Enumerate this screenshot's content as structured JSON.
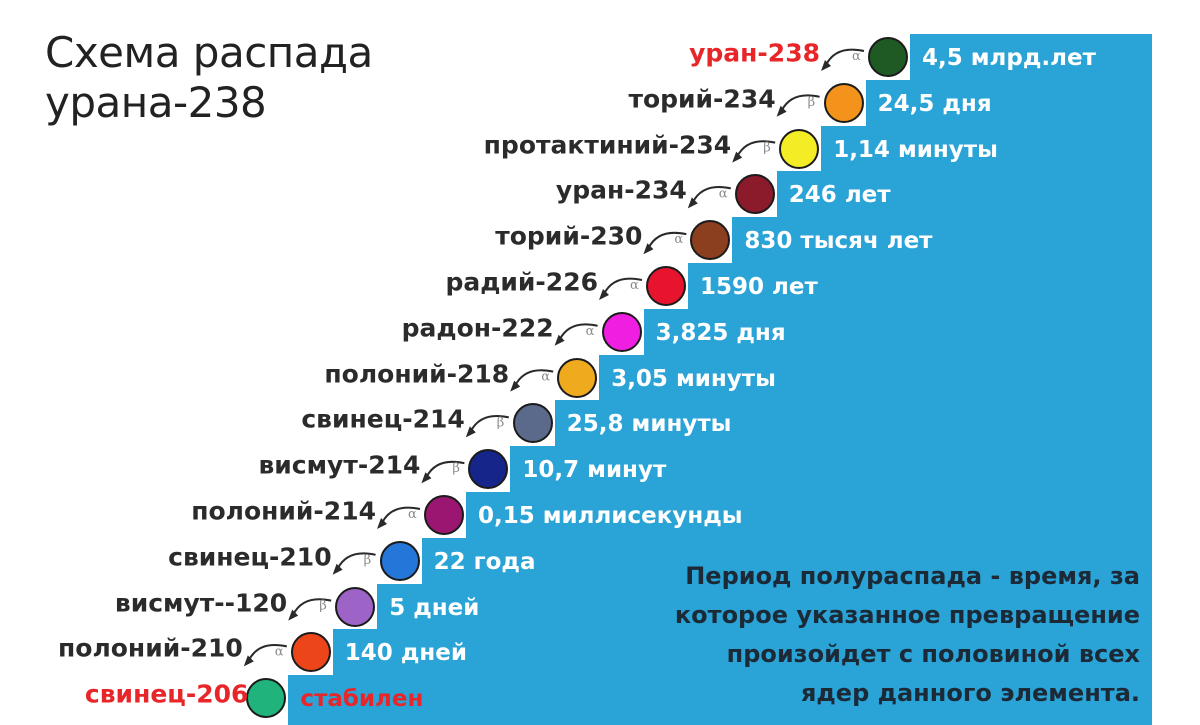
{
  "title": {
    "line1": "Схема распада",
    "line2": "урана-238"
  },
  "note": [
    "Период полураспада - время, за",
    "которое указанное превращение",
    "произойдет с половиной всех",
    "ядер данного элемента."
  ],
  "chain": [
    {
      "name": "уран-238",
      "half_life": "4,5 млрд.лет",
      "decay": "α",
      "color": "#1f5a24",
      "highlight": true
    },
    {
      "name": "торий-234",
      "half_life": "24,5 дня",
      "decay": "β",
      "color": "#f3931b"
    },
    {
      "name": "протактиний-234",
      "half_life": "1,14 минуты",
      "decay": "β",
      "color": "#f4ec24"
    },
    {
      "name": "уран-234",
      "half_life": "246 лет",
      "decay": "α",
      "color": "#8b1a2a"
    },
    {
      "name": "торий-230",
      "half_life": "830 тысяч лет",
      "decay": "α",
      "color": "#8c3f1e"
    },
    {
      "name": "радий-226",
      "half_life": "1590 лет",
      "decay": "α",
      "color": "#e8142e"
    },
    {
      "name": "радон-222",
      "half_life": "3,825 дня",
      "decay": "α",
      "color": "#f01ee0"
    },
    {
      "name": "полоний-218",
      "half_life": "3,05 минуты",
      "decay": "α",
      "color": "#f0aa1e"
    },
    {
      "name": "свинец-214",
      "half_life": "25,8 минуты",
      "decay": "β",
      "color": "#5b6a8b"
    },
    {
      "name": "висмут-214",
      "half_life": "10,7 минут",
      "decay": "β",
      "color": "#15258a"
    },
    {
      "name": "полоний-214",
      "half_life": "0,15 миллисекунды",
      "decay": "α",
      "color": "#9b1670"
    },
    {
      "name": "свинец-210",
      "half_life": "22 года",
      "decay": "β",
      "color": "#2477d8"
    },
    {
      "name": "висмут--120",
      "half_life": "5 дней",
      "decay": "β",
      "color": "#9e63c6"
    },
    {
      "name": "полоний-210",
      "half_life": "140 дней",
      "decay": "α",
      "color": "#ec4519"
    },
    {
      "name": "свинец-206",
      "half_life": "стабилен",
      "decay": "",
      "color": "#20b37c",
      "highlight": true
    }
  ],
  "colors": {
    "stairs": "#2aa3d6",
    "name_text": "#2b2b2b",
    "highlight_text": "#e8262a",
    "half_life_text": "#ffffff"
  }
}
